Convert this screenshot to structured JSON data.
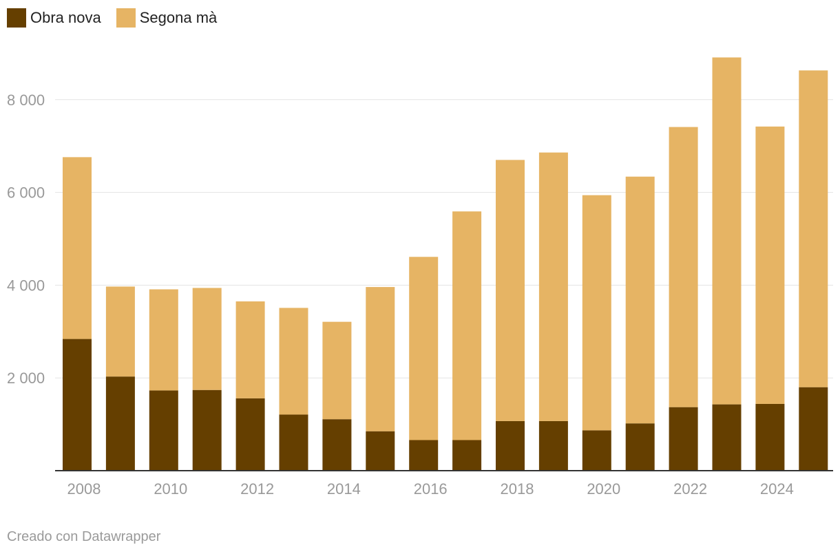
{
  "chart_data": {
    "type": "bar",
    "stacked": true,
    "categories": [
      "2008",
      "2009",
      "2010",
      "2011",
      "2012",
      "2013",
      "2014",
      "2015",
      "2016",
      "2017",
      "2018",
      "2019",
      "2020",
      "2021",
      "2022",
      "2023",
      "2024",
      "2025"
    ],
    "series": [
      {
        "name": "Obra nova",
        "color": "#653F00",
        "values": [
          2840,
          2030,
          1730,
          1740,
          1560,
          1210,
          1110,
          850,
          660,
          660,
          1070,
          1070,
          870,
          1020,
          1370,
          1430,
          1440,
          1800
        ]
      },
      {
        "name": "Segona mà",
        "color": "#E6B464",
        "values": [
          3920,
          1940,
          2180,
          2200,
          2090,
          2300,
          2100,
          3110,
          3950,
          4930,
          5630,
          5790,
          5070,
          5320,
          6040,
          7480,
          5980,
          6830
        ]
      }
    ],
    "x_tick_labels": [
      "2008",
      "2010",
      "2012",
      "2014",
      "2016",
      "2018",
      "2020",
      "2022",
      "2024"
    ],
    "y_ticks": [
      2000,
      4000,
      6000,
      8000
    ],
    "y_tick_labels": [
      "2 000",
      "4 000",
      "6 000",
      "8 000"
    ],
    "ylim": [
      0,
      9000
    ],
    "grid": true,
    "legend_position": "top-left",
    "title": "",
    "xlabel": "",
    "ylabel": ""
  },
  "footer": {
    "credit": "Creado con Datawrapper"
  }
}
